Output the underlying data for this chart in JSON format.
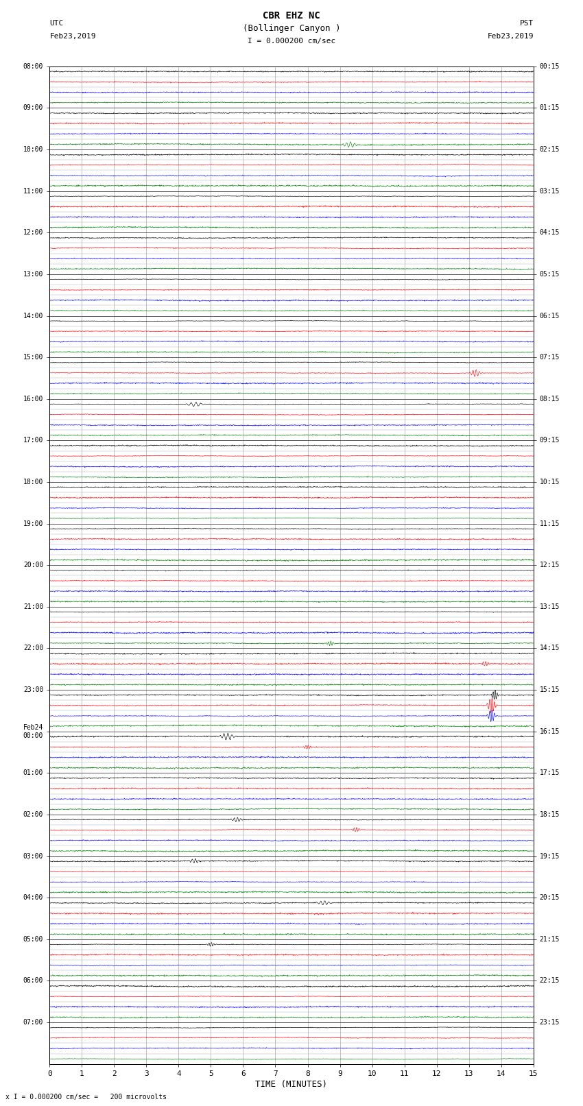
{
  "title_line1": "CBR EHZ NC",
  "title_line2": "(Bollinger Canyon )",
  "scale_label": "I = 0.000200 cm/sec",
  "left_label_top": "UTC",
  "left_label_date": "Feb23,2019",
  "right_label_top": "PST",
  "right_label_date": "Feb23,2019",
  "bottom_label": "TIME (MINUTES)",
  "footer_label": "x I = 0.000200 cm/sec =   200 microvolts",
  "utc_times_labeled": [
    "08:00",
    "09:00",
    "10:00",
    "11:00",
    "12:00",
    "13:00",
    "14:00",
    "15:00",
    "16:00",
    "17:00",
    "18:00",
    "19:00",
    "20:00",
    "21:00",
    "22:00",
    "23:00",
    "Feb24\n00:00",
    "01:00",
    "02:00",
    "03:00",
    "04:00",
    "05:00",
    "06:00",
    "07:00"
  ],
  "pst_times_labeled": [
    "00:15",
    "01:15",
    "02:15",
    "03:15",
    "04:15",
    "05:15",
    "06:15",
    "07:15",
    "08:15",
    "09:15",
    "10:15",
    "11:15",
    "12:15",
    "13:15",
    "14:15",
    "15:15",
    "16:15",
    "17:15",
    "18:15",
    "19:15",
    "20:15",
    "21:15",
    "22:15",
    "23:15"
  ],
  "num_rows": 96,
  "colors_cycle": [
    "black",
    "red",
    "blue",
    "green"
  ],
  "xmin": 0,
  "xmax": 15,
  "noise_amp": 0.06,
  "background_color": "white",
  "grid_minor_color": "#aaaaaa",
  "grid_major_color": "#555555",
  "font_family": "monospace",
  "fig_width": 8.5,
  "fig_height": 16.13,
  "special_events": [
    {
      "row": 7,
      "x": 9.3,
      "amp": 0.28,
      "color": "blue",
      "dur": 0.5
    },
    {
      "row": 29,
      "x": 13.2,
      "amp": 0.35,
      "color": "red",
      "dur": 0.4
    },
    {
      "row": 32,
      "x": 4.5,
      "amp": 0.22,
      "color": "blue",
      "dur": 0.6
    },
    {
      "row": 55,
      "x": 8.7,
      "amp": 0.22,
      "color": "red",
      "dur": 0.3
    },
    {
      "row": 57,
      "x": 13.5,
      "amp": 0.25,
      "color": "green",
      "dur": 0.3
    },
    {
      "row": 60,
      "x": 13.8,
      "amp": 0.5,
      "color": "red",
      "dur": 0.25
    },
    {
      "row": 64,
      "x": 5.5,
      "amp": 0.35,
      "color": "blue",
      "dur": 0.5
    },
    {
      "row": 65,
      "x": 8.0,
      "amp": 0.2,
      "color": "red",
      "dur": 0.3
    },
    {
      "row": 72,
      "x": 5.8,
      "amp": 0.22,
      "color": "red",
      "dur": 0.4
    },
    {
      "row": 73,
      "x": 9.5,
      "amp": 0.22,
      "color": "blue",
      "dur": 0.3
    },
    {
      "row": 76,
      "x": 4.5,
      "amp": 0.22,
      "color": "green",
      "dur": 0.4
    },
    {
      "row": 80,
      "x": 8.5,
      "amp": 0.2,
      "color": "black",
      "dur": 0.5
    },
    {
      "row": 84,
      "x": 5.0,
      "amp": 0.2,
      "color": "red",
      "dur": 0.3
    },
    {
      "row": 61,
      "x": 13.7,
      "amp": 0.8,
      "color": "red",
      "dur": 0.3
    },
    {
      "row": 62,
      "x": 13.7,
      "amp": 0.6,
      "color": "blue",
      "dur": 0.3
    }
  ]
}
